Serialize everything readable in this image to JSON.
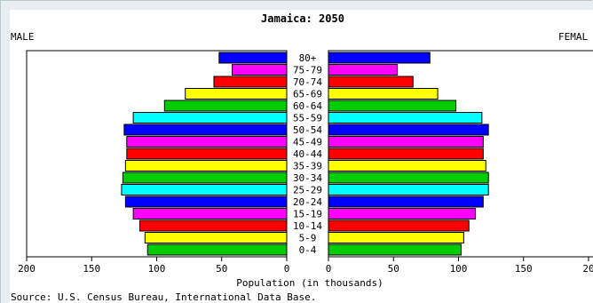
{
  "chart_data": {
    "type": "bar",
    "title": "Jamaica: 2050",
    "left_label": "MALE",
    "right_label": "FEMAL",
    "xlabel": "Population (in thousands)",
    "source": "Source: U.S. Census Bureau, International Data Base.",
    "xlim": [
      0,
      200
    ],
    "x_ticks": [
      "200",
      "150",
      "100",
      "50",
      "0",
      "0",
      "50",
      "100",
      "150",
      "20"
    ],
    "tick_values": [
      200,
      150,
      100,
      50,
      0
    ],
    "categories": [
      "80+",
      "75-79",
      "70-74",
      "65-69",
      "60-64",
      "55-59",
      "50-54",
      "45-49",
      "40-44",
      "35-39",
      "30-34",
      "25-29",
      "20-24",
      "15-19",
      "10-14",
      "5-9",
      "0-4"
    ],
    "colors": [
      "#0000ff",
      "#ff00ff",
      "#ff0000",
      "#ffff00",
      "#00cc00",
      "#00ffff",
      "#0000ff",
      "#ff00ff",
      "#ff0000",
      "#ffff00",
      "#00cc00",
      "#00ffff",
      "#0000ff",
      "#ff00ff",
      "#ff0000",
      "#ffff00",
      "#00cc00"
    ],
    "series": [
      {
        "name": "MALE",
        "values": [
          52,
          42,
          56,
          78,
          94,
          118,
          125,
          123,
          123,
          124,
          126,
          127,
          124,
          118,
          113,
          109,
          107
        ]
      },
      {
        "name": "FEMAL",
        "values": [
          78,
          53,
          65,
          84,
          98,
          118,
          123,
          119,
          119,
          121,
          123,
          123,
          119,
          113,
          108,
          104,
          102
        ]
      }
    ]
  }
}
